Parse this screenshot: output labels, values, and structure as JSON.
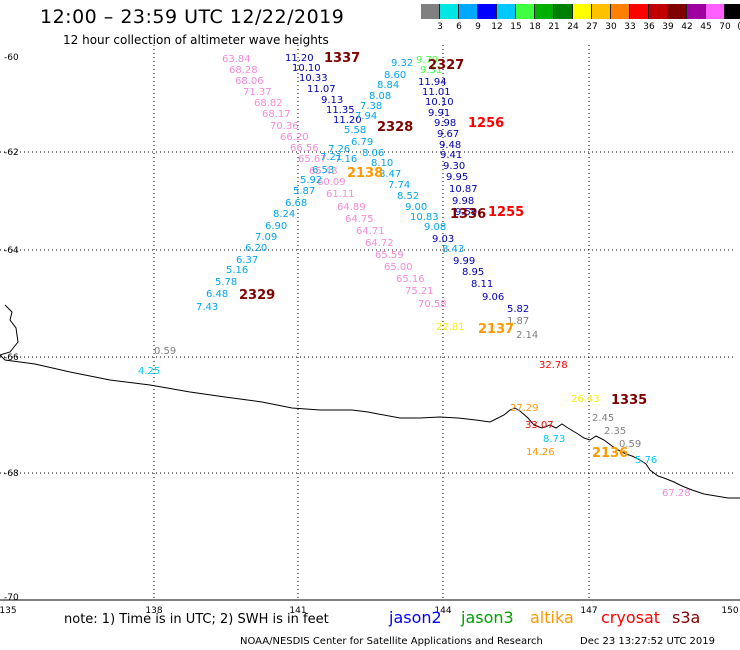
{
  "header": {
    "title": "12:00 – 23:59 UTC 12/22/2019",
    "subtitle": "12 hour collection of altimeter wave heights"
  },
  "color_scale": {
    "labels": [
      "3",
      "6",
      "9",
      "12",
      "15",
      "18",
      "21",
      "24",
      "27",
      "30",
      "33",
      "36",
      "39",
      "42",
      "45",
      "70",
      "(ft)"
    ],
    "colors": [
      "#808080",
      "#00e5e5",
      "#00a8ff",
      "#0000ff",
      "#00c8ff",
      "#40ff40",
      "#00b000",
      "#008000",
      "#ffff00",
      "#ffc000",
      "#ff8000",
      "#ff0000",
      "#c00000",
      "#800000",
      "#a000a0",
      "#ff60ff",
      "#000000"
    ]
  },
  "axes": {
    "lon_ticks": [
      "135",
      "138",
      "141",
      "144",
      "147",
      "150"
    ],
    "lat_ticks": [
      "-60",
      "-62",
      "-64",
      "-66",
      "-68",
      "-70"
    ]
  },
  "tracks": [
    {
      "name": "pink",
      "color": "#f58ad8",
      "values": [
        "63.84",
        "68.28",
        "68.06",
        "71.37",
        "68.82",
        "68.17",
        "70.36",
        "66.20",
        "66.56",
        "65.67",
        "65.43",
        "60.09",
        "61.11",
        "64.89",
        "64.75",
        "64.71",
        "64.72",
        "65.59",
        "65.00",
        "65.16",
        "75.21",
        "70.58"
      ]
    },
    {
      "name": "navy1",
      "color": "#0000b4",
      "values": [
        "11.20",
        "10.10",
        "10.33",
        "11.07",
        "9.13",
        "11.35",
        "11.20"
      ]
    },
    {
      "name": "cyan1",
      "color": "#00a5ee",
      "values": [
        "5.58",
        "6.79",
        "7.26",
        "7.16",
        "7.21",
        "6.53",
        "5.92",
        "5.87",
        "6.68",
        "8.24",
        "6.90",
        "7.09",
        "6.20",
        "6.37",
        "5.16",
        "5.78",
        "6.48",
        "7.43"
      ]
    },
    {
      "name": "cyan2",
      "color": "#00a5ee",
      "values": [
        "9.32",
        "8.60",
        "8.84",
        "8.08",
        "7.38",
        "7.94",
        "8.06",
        "8.10",
        "8.47",
        "7.74",
        "8.52",
        "9.00",
        "10.83",
        "9.08",
        "8.43"
      ]
    },
    {
      "name": "navy2",
      "color": "#0000b4",
      "values": [
        "11.94",
        "11.01",
        "10.10",
        "9.91",
        "9.98",
        "9.67",
        "9.48",
        "9.41",
        "9.30",
        "9.95",
        "10.87",
        "9.98",
        "9.59",
        "9.03",
        "9.99",
        "8.95",
        "8.11",
        "9.06",
        "5.82"
      ]
    },
    {
      "name": "green",
      "color": "#40ff40",
      "values": [
        "9.79",
        "9.31"
      ]
    },
    {
      "name": "misc",
      "color": "#808080",
      "values": [
        "1.87",
        "2.14",
        "0.59",
        "2.45",
        "2.35",
        "0.59"
      ]
    },
    {
      "name": "cyan3",
      "color": "#00c8ff",
      "values": [
        "4.25",
        "8.73",
        "5.76"
      ]
    },
    {
      "name": "yellow",
      "color": "#ffee00",
      "values": [
        "22.81",
        "26.43"
      ]
    },
    {
      "name": "orange",
      "color": "#ff9900",
      "values": [
        "27.29",
        "14.26"
      ]
    },
    {
      "name": "red",
      "color": "#ff0000",
      "values": [
        "32.78",
        "33.07"
      ]
    },
    {
      "name": "pinkfar",
      "color": "#f58ad8",
      "values": [
        "67.28"
      ]
    }
  ],
  "pass_times": [
    {
      "time": "1337",
      "color": "#800000"
    },
    {
      "time": "2327",
      "color": "#800000"
    },
    {
      "time": "2328",
      "color": "#800000"
    },
    {
      "time": "1256",
      "color": "#ff0000"
    },
    {
      "time": "2138",
      "color": "#ff9900"
    },
    {
      "time": "1336",
      "color": "#800000"
    },
    {
      "time": "1255",
      "color": "#ff0000"
    },
    {
      "time": "2329",
      "color": "#800000"
    },
    {
      "time": "2137",
      "color": "#ff9900"
    },
    {
      "time": "1335",
      "color": "#800000"
    },
    {
      "time": "2136",
      "color": "#ff9900"
    }
  ],
  "footer": {
    "note": "note:  1) Time is in UTC;  2) SWH is in feet",
    "legend": [
      {
        "label": "jason2",
        "color": "#0000ff"
      },
      {
        "label": "jason3",
        "color": "#00a000"
      },
      {
        "label": "altika",
        "color": "#ff9900"
      },
      {
        "label": "cryosat",
        "color": "#ff0000"
      },
      {
        "label": "s3a",
        "color": "#800000"
      }
    ],
    "credit": "NOAA/NESDIS Center for Satellite Applications and Research",
    "timestamp": "Dec 23 13:27:52 UTC 2019"
  }
}
